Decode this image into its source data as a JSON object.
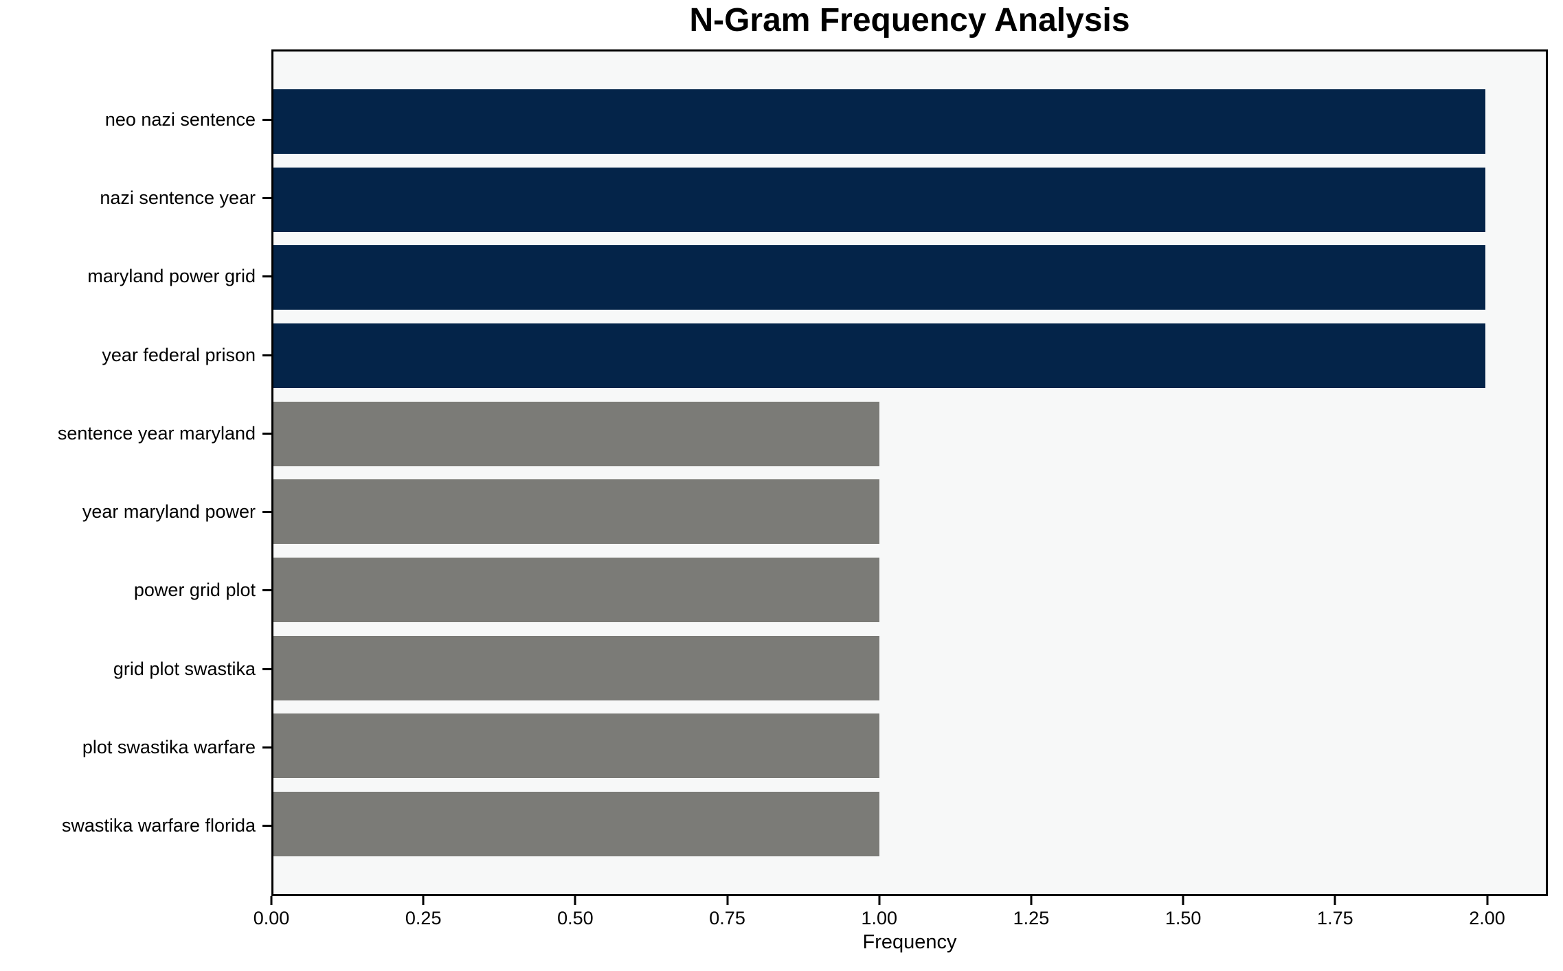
{
  "chart_data": {
    "type": "bar",
    "orientation": "horizontal",
    "title": "N-Gram Frequency Analysis",
    "xlabel": "Frequency",
    "ylabel": "",
    "categories": [
      "neo nazi sentence",
      "nazi sentence year",
      "maryland power grid",
      "year federal prison",
      "sentence year maryland",
      "year maryland power",
      "power grid plot",
      "grid plot swastika",
      "plot swastika warfare",
      "swastika warfare florida"
    ],
    "values": [
      2,
      2,
      2,
      2,
      1,
      1,
      1,
      1,
      1,
      1
    ],
    "bar_colors": [
      "#042449",
      "#042449",
      "#042449",
      "#042449",
      "#7b7b77",
      "#7b7b77",
      "#7b7b77",
      "#7b7b77",
      "#7b7b77",
      "#7b7b77"
    ],
    "xlim": [
      0,
      2.1
    ],
    "xticks": [
      0,
      0.25,
      0.5,
      0.75,
      1.0,
      1.25,
      1.5,
      1.75,
      2.0
    ],
    "xtick_labels": [
      "0.00",
      "0.25",
      "0.50",
      "0.75",
      "1.00",
      "1.25",
      "1.50",
      "1.75",
      "2.00"
    ],
    "grid": false,
    "legend": null,
    "colors": {
      "highlight": "#042449",
      "normal": "#7b7b77",
      "plot_background": "#f7f8f8",
      "figure_background": "#ffffff",
      "spine": "#000000",
      "text": "#000000"
    }
  }
}
